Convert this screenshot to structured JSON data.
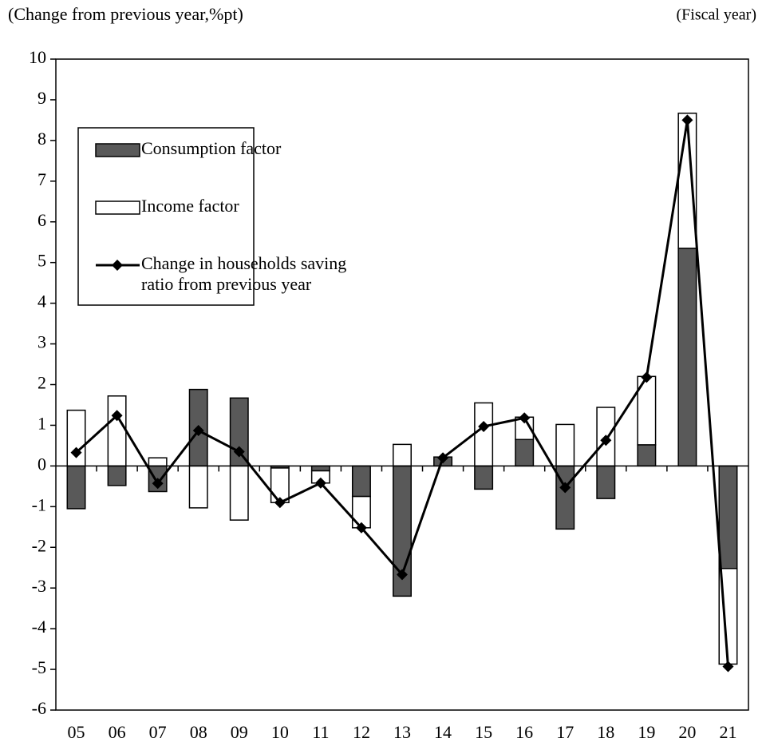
{
  "chart_data": {
    "type": "bar",
    "stacked": true,
    "y_label": "(Change from previous year,%pt)",
    "x_label": "(Fiscal year)",
    "categories": [
      "05",
      "06",
      "07",
      "08",
      "09",
      "10",
      "11",
      "12",
      "13",
      "14",
      "15",
      "16",
      "17",
      "18",
      "19",
      "20",
      "21"
    ],
    "series": [
      {
        "name": "Consumption factor",
        "type": "bar",
        "color": "#595959",
        "values": [
          -1.05,
          -0.48,
          -0.63,
          1.88,
          1.67,
          -0.05,
          -0.12,
          -0.75,
          -3.2,
          0.22,
          -0.57,
          0.65,
          -1.55,
          -0.8,
          0.52,
          5.35,
          -2.52
        ]
      },
      {
        "name": "Income factor",
        "type": "bar",
        "color": "#ffffff",
        "values": [
          1.37,
          1.72,
          0.2,
          -1.03,
          -1.33,
          -0.85,
          -0.3,
          -0.77,
          0.53,
          0,
          1.55,
          0.55,
          1.02,
          1.44,
          1.68,
          3.32,
          -2.35
        ]
      },
      {
        "name": "Change in households saving ratio from previous year",
        "type": "line",
        "color": "#000000",
        "values": [
          0.33,
          1.24,
          -0.43,
          0.87,
          0.35,
          -0.9,
          -0.42,
          -1.52,
          -2.67,
          0.2,
          0.97,
          1.18,
          -0.53,
          0.63,
          2.18,
          8.5,
          -4.93
        ]
      }
    ],
    "ylim": [
      -6,
      10
    ],
    "yticks": [
      -6,
      -5,
      -4,
      -3,
      -2,
      -1,
      0,
      1,
      2,
      3,
      4,
      5,
      6,
      7,
      8,
      9,
      10
    ],
    "grid": false,
    "legend": "upper left"
  }
}
